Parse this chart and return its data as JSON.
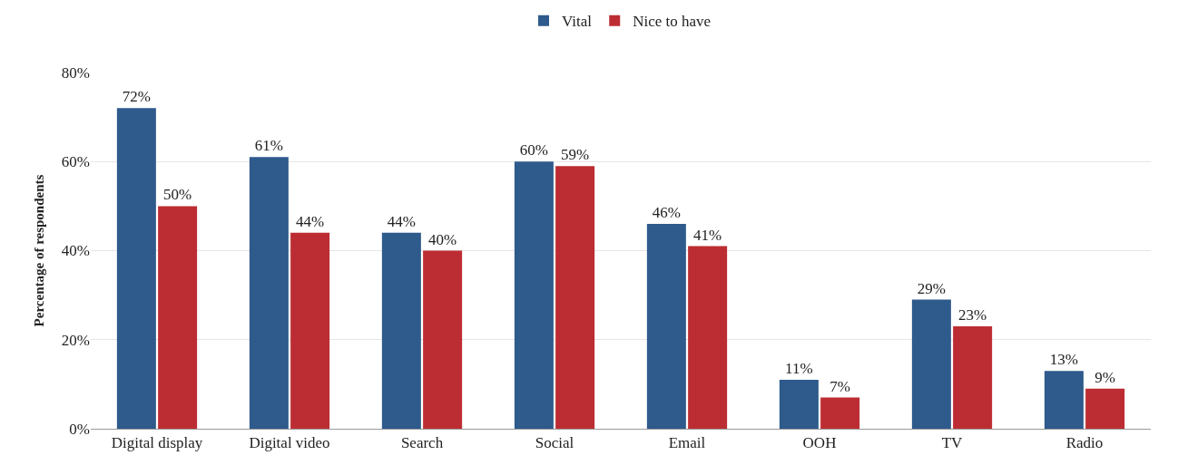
{
  "chart_data": {
    "type": "bar",
    "ylabel": "Percentage of respondents",
    "categories": [
      "Digital display",
      "Digital video",
      "Search",
      "Social",
      "Email",
      "OOH",
      "TV",
      "Radio"
    ],
    "series": [
      {
        "name": "Vital",
        "color": "#2e5a8c",
        "values": [
          72,
          61,
          44,
          60,
          46,
          11,
          29,
          13
        ],
        "value_labels": [
          "72%",
          "61%",
          "44%",
          "60%",
          "46%",
          "11%",
          "29%",
          "13%"
        ]
      },
      {
        "name": "Nice to have",
        "color": "#bc2d33",
        "values": [
          50,
          44,
          40,
          59,
          41,
          7,
          23,
          9
        ],
        "value_labels": [
          "50%",
          "44%",
          "40%",
          "59%",
          "41%",
          "7%",
          "23%",
          "9%"
        ]
      }
    ],
    "ylim": [
      0,
      80
    ],
    "yticks": [
      {
        "value": 0,
        "label": "0%"
      },
      {
        "value": 20,
        "label": "20%"
      },
      {
        "value": 40,
        "label": "40%"
      },
      {
        "value": 60,
        "label": "60%"
      },
      {
        "value": 80,
        "label": "80%"
      }
    ],
    "grid": "y",
    "legend": "top"
  }
}
